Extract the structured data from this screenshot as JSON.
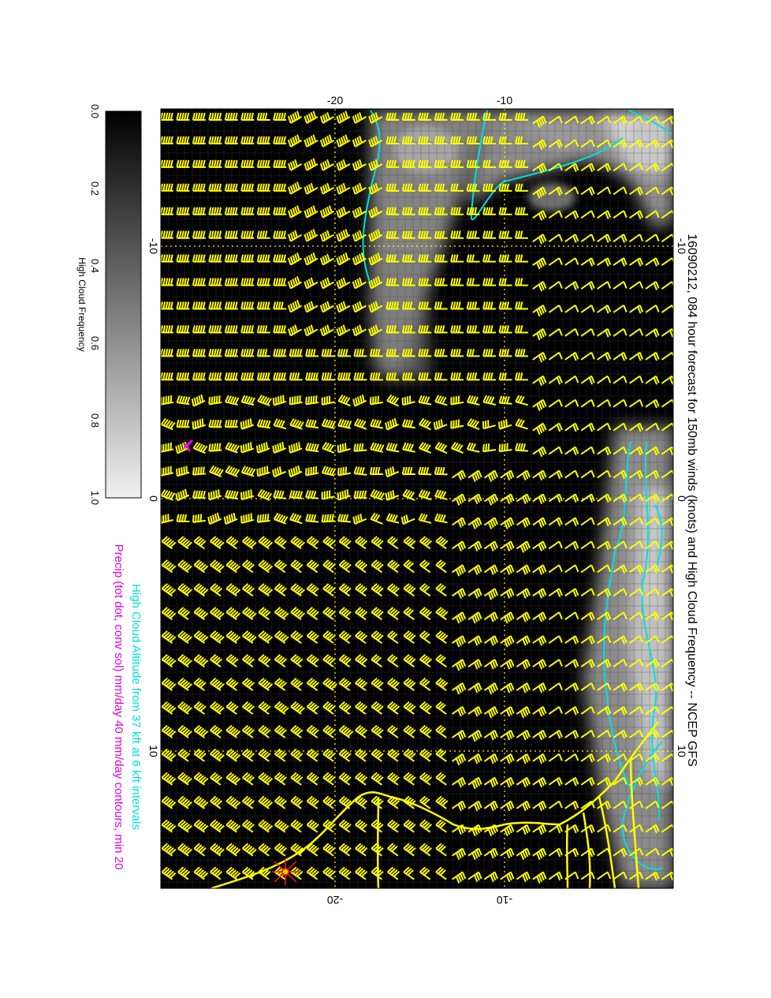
{
  "figure": {
    "title": "16090212, 084 hour forecast for 150mb winds (knots) and High Cloud Frequency -- NCEP GFS",
    "legend_line_1": "High Cloud Altitude from 37 kft at 6 kft intervals",
    "legend_line_2": "Precip (tot dot, conv sol) mm/day 40 mm/day contours, min 20"
  },
  "colorbar": {
    "label": "High Cloud Frequency",
    "ticks": [
      "0.0",
      "0.2",
      "0.4",
      "0.6",
      "0.8",
      "1.0"
    ],
    "range": [
      0.0,
      1.0
    ],
    "colors": {
      "low": "#000000",
      "high": "#f0f0f0"
    }
  },
  "map_axes": {
    "lat_ticks_top": [
      "-20",
      "-10"
    ],
    "lat_ticks_bottom": [
      "-20",
      "-10"
    ],
    "lon_ticks_left": [
      "-10",
      "0",
      "10"
    ],
    "lon_ticks_right": [
      "-10",
      "0",
      "10"
    ],
    "gridlines": "dotted"
  },
  "colors": {
    "wind_barbs": "#ffff00",
    "coastline": "#ffff00",
    "cloud_altitude_contours": "#00e0e0",
    "precip": "#ff00ff",
    "marker": "#ff2000",
    "cloud_field": "#b0b0b0"
  },
  "layers": {
    "wind_barbs": "wind-barbs",
    "coastline": "coastline",
    "contours": "cloud-altitude-contours",
    "marker": "star-marker"
  }
}
